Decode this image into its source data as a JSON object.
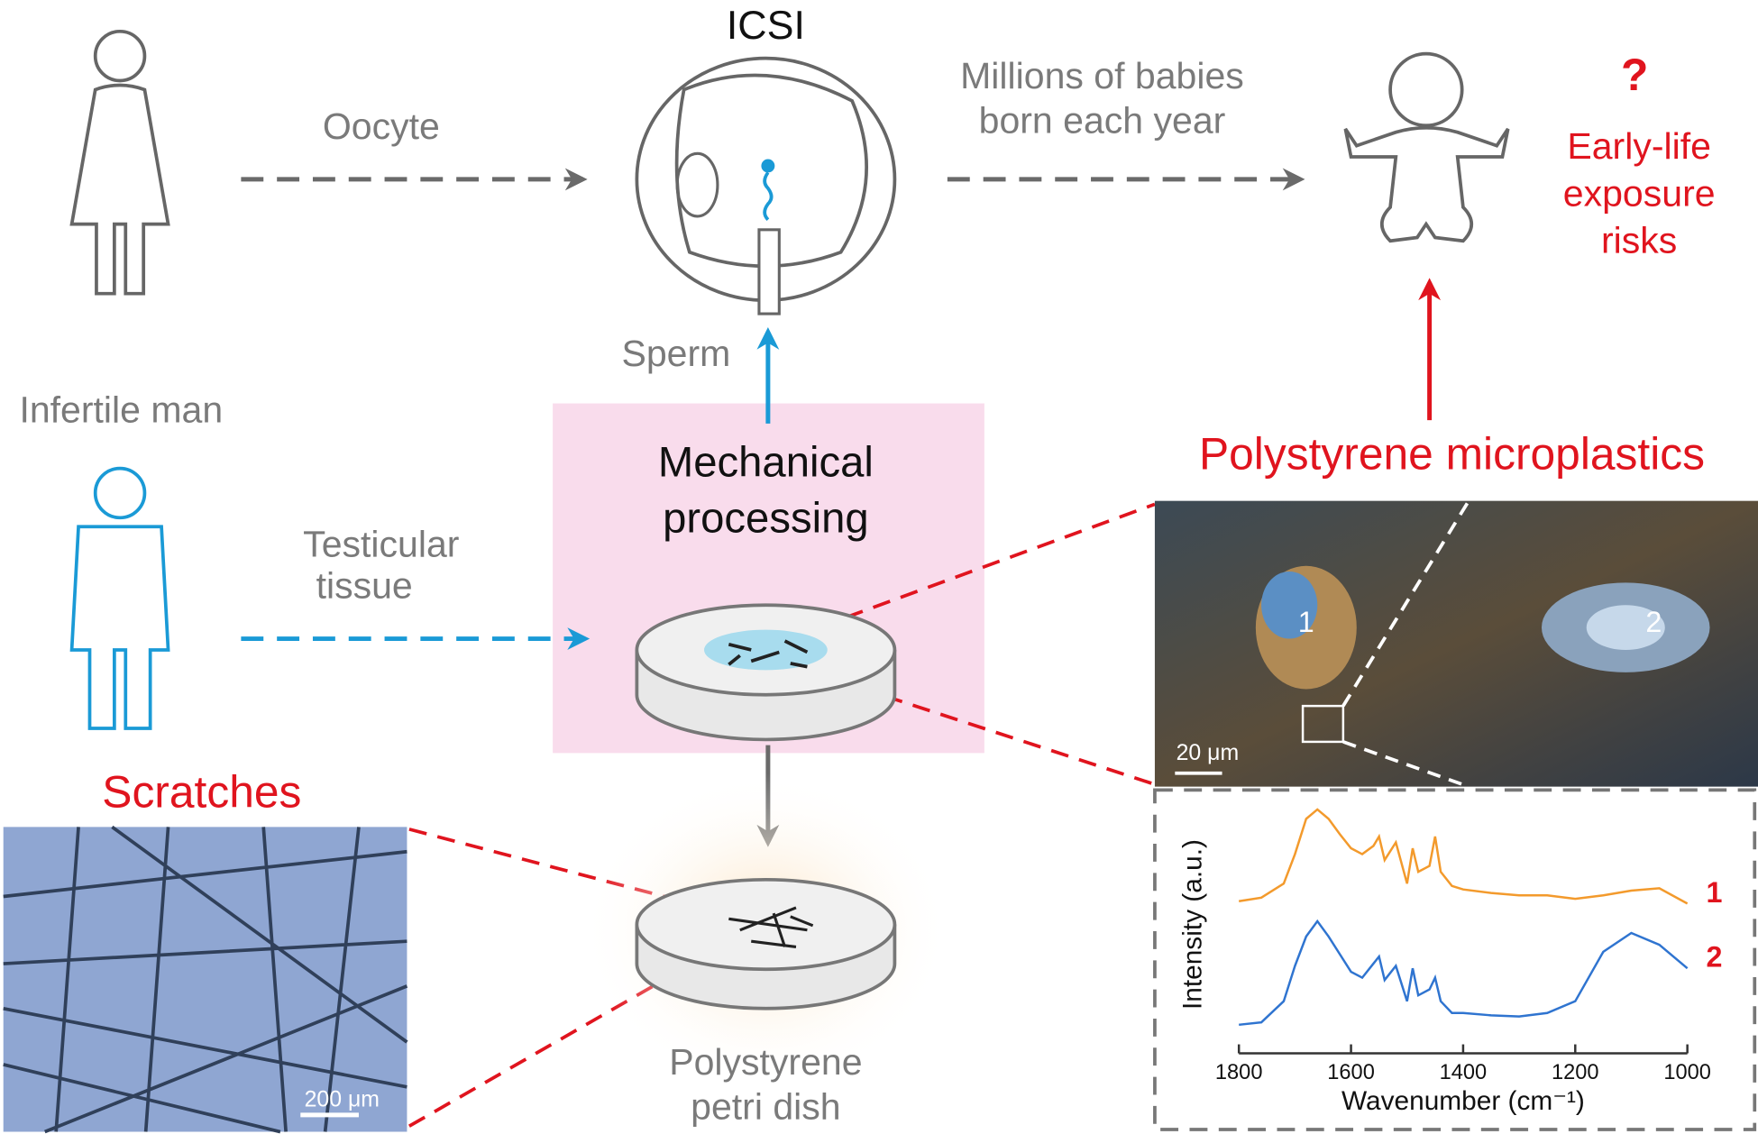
{
  "header": {
    "icsi": "ICSI",
    "oocyte": "Oocyte",
    "babies": [
      "Millions of babies",
      "born each year"
    ],
    "question": "?",
    "risks": [
      "Early-life",
      "exposure",
      "risks"
    ]
  },
  "labels": {
    "sperm": "Sperm",
    "infertile_man": "Infertile man",
    "processing": [
      "Mechanical",
      "processing"
    ],
    "microplastics": "Polystyrene microplastics",
    "tissue": [
      "Testicular",
      "tissue"
    ],
    "scratches": "Scratches",
    "petri_dish": [
      "Polystyrene",
      "petri dish"
    ],
    "scale_small": "20 μm",
    "scale_large": "200 μm"
  },
  "spectrum": {
    "type": "line",
    "xlabel": "Wavenumber (cm⁻¹)",
    "ylabel": "Intensity (a.u.)",
    "xlim": [
      1800,
      1000
    ],
    "xticks": [
      1800,
      1600,
      1400,
      1200,
      1000
    ],
    "ylim": [
      0,
      2
    ],
    "x": [
      1800,
      1760,
      1720,
      1700,
      1680,
      1660,
      1640,
      1620,
      1600,
      1580,
      1560,
      1550,
      1540,
      1520,
      1500,
      1490,
      1480,
      1460,
      1450,
      1440,
      1420,
      1400,
      1350,
      1300,
      1250,
      1200,
      1150,
      1100,
      1050,
      1000
    ],
    "series": [
      {
        "name": "1",
        "color": "#f39a2c",
        "values": [
          1.15,
          1.18,
          1.3,
          1.55,
          1.85,
          1.93,
          1.85,
          1.72,
          1.6,
          1.55,
          1.62,
          1.7,
          1.5,
          1.65,
          1.3,
          1.6,
          1.4,
          1.45,
          1.7,
          1.4,
          1.28,
          1.25,
          1.22,
          1.2,
          1.2,
          1.17,
          1.2,
          1.24,
          1.26,
          1.13
        ]
      },
      {
        "name": "2",
        "color": "#2f74d0",
        "values": [
          0.1,
          0.12,
          0.3,
          0.6,
          0.85,
          0.98,
          0.85,
          0.7,
          0.55,
          0.5,
          0.62,
          0.68,
          0.48,
          0.6,
          0.3,
          0.58,
          0.35,
          0.4,
          0.5,
          0.3,
          0.2,
          0.2,
          0.18,
          0.17,
          0.2,
          0.3,
          0.72,
          0.88,
          0.78,
          0.58
        ]
      }
    ]
  }
}
